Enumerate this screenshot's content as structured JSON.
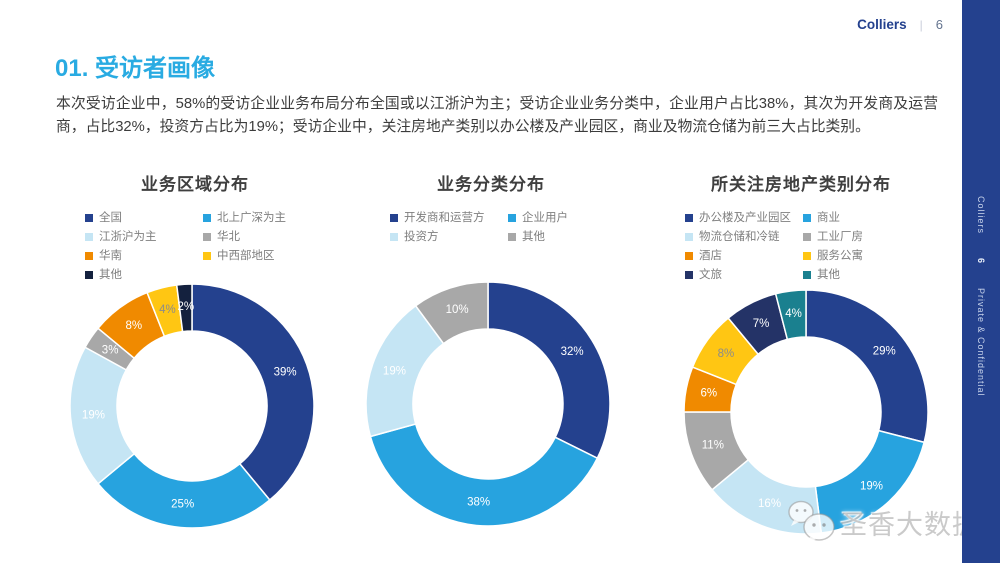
{
  "header": {
    "brand": "Colliers",
    "divider": "|",
    "page": "6"
  },
  "sidebar": {
    "brand": "Colliers",
    "page": "6",
    "confidential": "Private & Confidential",
    "bg_color": "#24418E"
  },
  "section": {
    "title": "01. 受访者画像",
    "title_color": "#29ABE2",
    "body": "本次受访企业中，58%的受访企业业务布局分布全国或以江浙沪为主；受访企业业务分类中，企业用户占比38%，其次为开发商及运营商，占比32%，投资方占比为19%；受访企业中，关注房地产类别以办公楼及产业园区，商业及物流仓储为前三大占比类别。"
  },
  "watermark": {
    "text": "圣香大数据",
    "icon": "wechat-icon"
  },
  "chart_data": [
    {
      "type": "pie",
      "variant": "donut",
      "title": "业务区域分布",
      "categories": [
        "全国",
        "北上广深为主",
        "江浙沪为主",
        "华北",
        "华南",
        "中西部地区",
        "其他"
      ],
      "values": [
        39,
        25,
        19,
        3,
        8,
        4,
        2
      ],
      "value_labels": [
        "39%",
        "25%",
        "19%",
        "3%",
        "8%",
        "4%",
        "2%"
      ],
      "colors": [
        "#24418E",
        "#27A3DF",
        "#C5E5F4",
        "#A8A8A8",
        "#F08A00",
        "#FFC613",
        "#14213E"
      ],
      "label_colors": [
        "#FFFFFF",
        "#FFFFFF",
        "#FFFFFF",
        "#FFFFFF",
        "#FFFFFF",
        "#8C8C8C",
        "#FFFFFF"
      ],
      "legend_position": "top",
      "legend_columns": 2,
      "start_angle": -90,
      "clockwise": true
    },
    {
      "type": "pie",
      "variant": "donut",
      "title": "业务分类分布",
      "categories": [
        "开发商和运营方",
        "企业用户",
        "投资方",
        "其他"
      ],
      "values": [
        32,
        38,
        19,
        10
      ],
      "value_labels": [
        "32%",
        "38%",
        "19%",
        "10%"
      ],
      "colors": [
        "#24418E",
        "#27A3DF",
        "#C5E5F4",
        "#A8A8A8"
      ],
      "label_colors": [
        "#FFFFFF",
        "#FFFFFF",
        "#FFFFFF",
        "#FFFFFF"
      ],
      "legend_position": "top",
      "legend_columns": 2,
      "start_angle": -90,
      "clockwise": true
    },
    {
      "type": "pie",
      "variant": "donut",
      "title": "所关注房地产类别分布",
      "categories": [
        "办公楼及产业园区",
        "商业",
        "物流仓储和冷链",
        "工业厂房",
        "酒店",
        "服务公寓",
        "文旅",
        "其他"
      ],
      "values": [
        29,
        19,
        16,
        11,
        6,
        8,
        7,
        4
      ],
      "value_labels": [
        "29%",
        "19%",
        "16%",
        "11%",
        "6%",
        "8%",
        "7%",
        "4%"
      ],
      "colors": [
        "#24418E",
        "#27A3DF",
        "#C5E5F4",
        "#A8A8A8",
        "#F08A00",
        "#FFC613",
        "#243367",
        "#1A808F"
      ],
      "label_colors": [
        "#FFFFFF",
        "#FFFFFF",
        "#FFFFFF",
        "#FFFFFF",
        "#FFFFFF",
        "#8C8C8C",
        "#FFFFFF",
        "#FFFFFF"
      ],
      "legend_position": "top",
      "legend_columns": 2,
      "start_angle": -90,
      "clockwise": true
    }
  ]
}
